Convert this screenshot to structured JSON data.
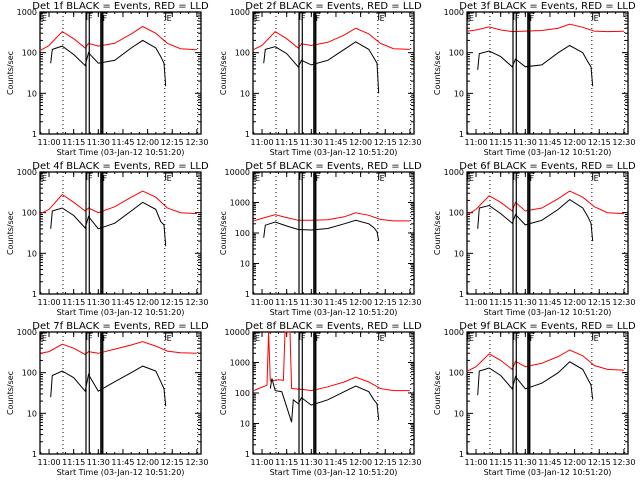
{
  "chart_data": {
    "type": "line",
    "layout": "3x3 grid",
    "x_axis": {
      "label": "Start Time (03-Jan-12 10:51:20)",
      "ticks": [
        "11:00",
        "11:15",
        "11:30",
        "11:45",
        "12:00",
        "12:15",
        "12:30"
      ],
      "range_minutes_after_10": [
        54.5,
        152.5
      ]
    },
    "y_axis": {
      "label": "Counts/sec",
      "scale": "log"
    },
    "series_legend": {
      "black": "Events",
      "red": "LLD"
    },
    "colors": {
      "events": "#000000",
      "lld": "#ff0000"
    },
    "markers": {
      "dotted_lines_min": [
        68.5,
        130.5,
        150.5
      ],
      "solid_lines_min": [
        82.5,
        84.5,
        91.5,
        92.5
      ],
      "flags": [
        {
          "label": "E",
          "min": 55
        },
        {
          "label": "F",
          "min": 83
        },
        {
          "label": "F",
          "min": 92
        },
        {
          "label": "E",
          "min": 131
        }
      ]
    },
    "panels": [
      {
        "title": "Det 1f BLACK = Events, RED = LLD",
        "ylim": [
          1,
          1000
        ],
        "ytick_labels": [
          "1",
          "10",
          "100",
          "1000"
        ],
        "lld": {
          "x": [
            55,
            60,
            68,
            75,
            82,
            84,
            90,
            100,
            110,
            117,
            125,
            132,
            140,
            150
          ],
          "y": [
            115,
            150,
            330,
            220,
            130,
            170,
            145,
            170,
            290,
            440,
            300,
            170,
            125,
            118
          ]
        },
        "events": {
          "x": [
            61,
            62,
            68,
            75,
            82,
            84,
            90,
            100,
            110,
            117,
            125,
            128,
            130,
            131
          ],
          "y": [
            55,
            120,
            145,
            90,
            48,
            100,
            55,
            65,
            130,
            200,
            130,
            80,
            55,
            15
          ]
        }
      },
      {
        "title": "Det 2f BLACK = Events, RED = LLD",
        "ylim": [
          1,
          1000
        ],
        "ytick_labels": [
          "1",
          "10",
          "100",
          "1000"
        ],
        "lld": {
          "x": [
            55,
            60,
            68,
            75,
            82,
            84,
            90,
            100,
            110,
            117,
            125,
            132,
            140,
            150
          ],
          "y": [
            120,
            150,
            330,
            220,
            130,
            165,
            150,
            180,
            270,
            400,
            290,
            170,
            125,
            120
          ]
        },
        "events": {
          "x": [
            61,
            62,
            68,
            75,
            82,
            84,
            90,
            100,
            110,
            117,
            125,
            128,
            130,
            131
          ],
          "y": [
            55,
            120,
            140,
            95,
            45,
            65,
            50,
            65,
            120,
            185,
            120,
            75,
            55,
            10
          ]
        }
      },
      {
        "title": "Det 3f BLACK = Events, RED = LLD",
        "ylim": [
          1,
          1000
        ],
        "ytick_labels": [
          "1",
          "10",
          "100",
          "1000"
        ],
        "lld": {
          "x": [
            55,
            60,
            68,
            75,
            82,
            90,
            100,
            110,
            117,
            125,
            132,
            140,
            150
          ],
          "y": [
            340,
            360,
            430,
            360,
            330,
            340,
            350,
            400,
            500,
            420,
            340,
            330,
            335
          ]
        },
        "events": {
          "x": [
            61,
            62,
            68,
            75,
            82,
            84,
            90,
            100,
            110,
            117,
            125,
            128,
            130,
            131
          ],
          "y": [
            38,
            95,
            110,
            80,
            45,
            70,
            45,
            50,
            100,
            150,
            100,
            60,
            45,
            15
          ]
        }
      },
      {
        "title": "Det 4f BLACK = Events, RED = LLD",
        "ylim": [
          1,
          1000
        ],
        "ytick_labels": [
          "1",
          "10",
          "100",
          "1000"
        ],
        "lld": {
          "x": [
            55,
            60,
            68,
            75,
            82,
            84,
            90,
            100,
            110,
            117,
            125,
            132,
            140,
            150
          ],
          "y": [
            95,
            120,
            280,
            180,
            110,
            130,
            100,
            140,
            240,
            340,
            240,
            130,
            100,
            95
          ]
        },
        "events": {
          "x": [
            61,
            62,
            68,
            75,
            82,
            84,
            90,
            100,
            110,
            117,
            125,
            128,
            130,
            131
          ],
          "y": [
            40,
            110,
            130,
            85,
            42,
            80,
            40,
            55,
            110,
            180,
            120,
            60,
            50,
            15
          ]
        }
      },
      {
        "title": "Det 5f BLACK = Events, RED = LLD",
        "ylim": [
          1,
          10000
        ],
        "ytick_labels": [
          "1",
          "10",
          "100",
          "1000",
          "10000"
        ],
        "lld": {
          "x": [
            55,
            60,
            68,
            75,
            82,
            90,
            100,
            110,
            117,
            125,
            132,
            140,
            150
          ],
          "y": [
            250,
            300,
            400,
            320,
            260,
            260,
            270,
            340,
            460,
            380,
            280,
            250,
            250
          ]
        },
        "events": {
          "x": [
            61,
            62,
            68,
            75,
            82,
            90,
            100,
            110,
            117,
            125,
            128,
            130,
            131
          ],
          "y": [
            70,
            180,
            230,
            170,
            130,
            125,
            140,
            200,
            260,
            200,
            150,
            110,
            55
          ]
        }
      },
      {
        "title": "Det 6f BLACK = Events, RED = LLD",
        "ylim": [
          1,
          1000
        ],
        "ytick_labels": [
          "1",
          "10",
          "100",
          "1000"
        ],
        "lld": {
          "x": [
            55,
            60,
            68,
            75,
            82,
            84,
            90,
            100,
            110,
            117,
            125,
            132,
            140,
            150
          ],
          "y": [
            90,
            120,
            260,
            180,
            110,
            180,
            110,
            130,
            220,
            340,
            240,
            140,
            100,
            95
          ]
        },
        "events": {
          "x": [
            61,
            62,
            68,
            75,
            82,
            84,
            90,
            100,
            110,
            117,
            125,
            128,
            130,
            131
          ],
          "y": [
            40,
            130,
            150,
            95,
            55,
            90,
            50,
            65,
            120,
            210,
            130,
            80,
            55,
            20
          ]
        }
      },
      {
        "title": "Det 7f BLACK = Events, RED = LLD",
        "ylim": [
          1,
          1000
        ],
        "ytick_labels": [
          "1",
          "10",
          "100",
          "1000"
        ],
        "lld": {
          "x": [
            55,
            60,
            68,
            75,
            82,
            84,
            90,
            100,
            110,
            117,
            125,
            132,
            140,
            150
          ],
          "y": [
            300,
            330,
            500,
            400,
            280,
            330,
            300,
            380,
            480,
            580,
            450,
            340,
            310,
            300
          ]
        },
        "events": {
          "x": [
            61,
            62,
            68,
            75,
            82,
            84,
            90,
            100,
            110,
            117,
            125,
            128,
            130,
            131
          ],
          "y": [
            25,
            85,
            110,
            75,
            35,
            90,
            35,
            60,
            100,
            145,
            110,
            60,
            40,
            15
          ]
        }
      },
      {
        "title": "Det 8f BLACK = Events, RED = LLD",
        "ylim": [
          1,
          10000
        ],
        "ytick_labels": [
          "1",
          "10",
          "100",
          "1000",
          "10000"
        ],
        "lld": {
          "x": [
            55,
            58,
            63,
            64,
            65,
            70,
            73,
            74,
            77,
            78,
            85,
            90,
            100,
            110,
            117,
            125,
            132,
            140,
            150
          ],
          "y": [
            120,
            140,
            180,
            10000,
            250,
            270,
            260,
            10000,
            10000,
            140,
            130,
            120,
            160,
            230,
            330,
            230,
            140,
            120,
            120
          ]
        },
        "events": {
          "x": [
            65,
            66,
            68,
            72,
            78,
            79,
            82,
            84,
            90,
            100,
            110,
            117,
            125,
            128,
            130,
            131
          ],
          "y": [
            140,
            300,
            120,
            110,
            11,
            60,
            45,
            70,
            40,
            60,
            110,
            170,
            110,
            60,
            45,
            13
          ]
        }
      },
      {
        "title": "Det 9f BLACK = Events, RED = LLD",
        "ylim": [
          1,
          1000
        ],
        "ytick_labels": [
          "1",
          "10",
          "100",
          "1000"
        ],
        "lld": {
          "x": [
            55,
            60,
            68,
            75,
            82,
            84,
            90,
            100,
            110,
            117,
            125,
            132,
            140,
            150
          ],
          "y": [
            110,
            140,
            290,
            200,
            120,
            190,
            140,
            170,
            250,
            360,
            260,
            150,
            120,
            115
          ]
        },
        "events": {
          "x": [
            61,
            62,
            68,
            75,
            82,
            84,
            90,
            100,
            110,
            117,
            125,
            128,
            130,
            131
          ],
          "y": [
            28,
            110,
            130,
            85,
            40,
            80,
            40,
            55,
            100,
            185,
            120,
            70,
            50,
            22
          ]
        }
      }
    ]
  }
}
